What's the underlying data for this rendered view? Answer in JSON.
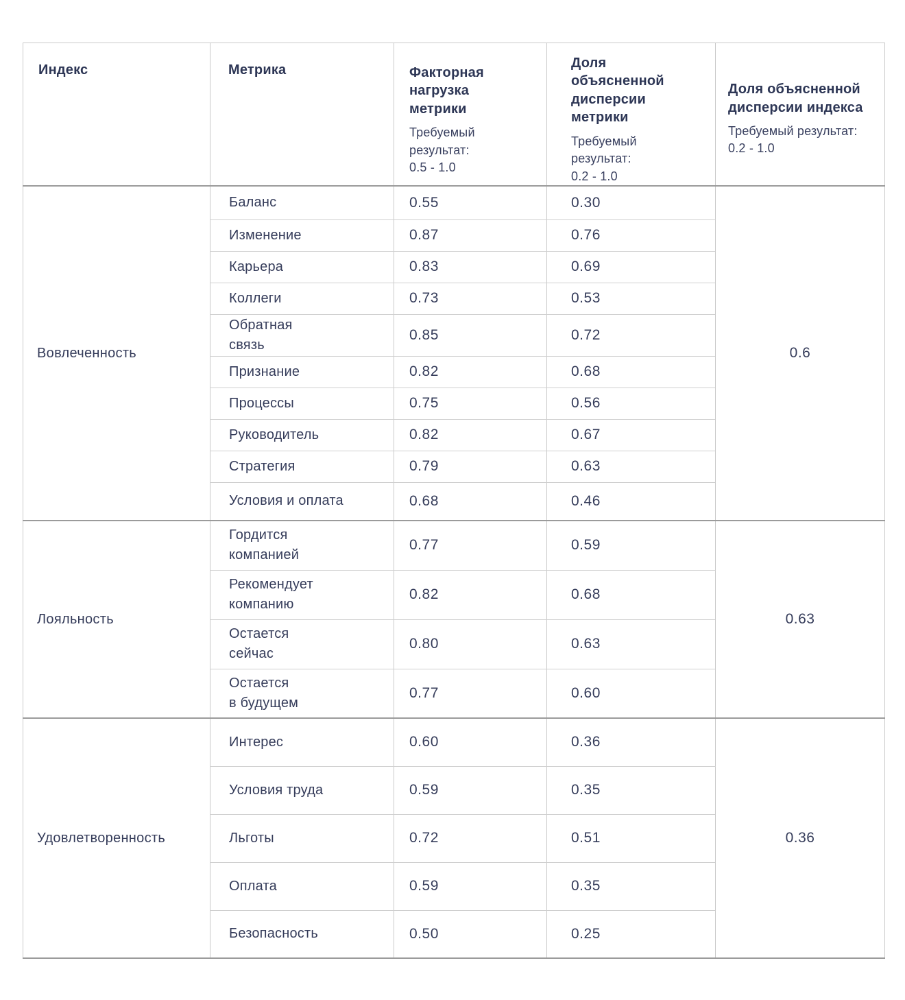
{
  "colors": {
    "header_text": "#2d3655",
    "body_text": "#353c5a",
    "border_light": "#c9c9c9",
    "border_dark": "#9b9b9b",
    "background": "#ffffff"
  },
  "table": {
    "columns": [
      {
        "label": "Индекс",
        "sublabel": ""
      },
      {
        "label": "Метрика",
        "sublabel": ""
      },
      {
        "label": "Факторная\nнагрузка\nметрики",
        "sublabel": "Требуемый\nрезультат:\n0.5 - 1.0"
      },
      {
        "label": "Доля\nобъясненной\nдисперсии\nметрики",
        "sublabel": "Требуемый\nрезультат:\n0.2 - 1.0"
      },
      {
        "label": "Доля объясненной\nдисперсии индекса",
        "sublabel": "Требуемый результат:\n0.2 - 1.0"
      }
    ],
    "groups": [
      {
        "index": "Вовлеченность",
        "index_variance": "0.6",
        "rows": [
          {
            "metric": "Баланс",
            "loading": "0.55",
            "variance": "0.30"
          },
          {
            "metric": "Изменение",
            "loading": "0.87",
            "variance": "0.76"
          },
          {
            "metric": "Карьера",
            "loading": "0.83",
            "variance": "0.69"
          },
          {
            "metric": "Коллеги",
            "loading": "0.73",
            "variance": "0.53"
          },
          {
            "metric": "Обратная\nсвязь",
            "loading": "0.85",
            "variance": "0.72"
          },
          {
            "metric": "Признание",
            "loading": "0.82",
            "variance": "0.68"
          },
          {
            "metric": "Процессы",
            "loading": "0.75",
            "variance": "0.56"
          },
          {
            "metric": "Руководитель",
            "loading": "0.82",
            "variance": "0.67"
          },
          {
            "metric": "Стратегия",
            "loading": "0.79",
            "variance": "0.63"
          },
          {
            "metric": "Условия и оплата",
            "loading": "0.68",
            "variance": "0.46"
          }
        ]
      },
      {
        "index": "Лояльность",
        "index_variance": "0.63",
        "rows": [
          {
            "metric": "Гордится\nкомпанией",
            "loading": "0.77",
            "variance": "0.59"
          },
          {
            "metric": "Рекомендует\nкомпанию",
            "loading": "0.82",
            "variance": "0.68"
          },
          {
            "metric": "Остается\nсейчас",
            "loading": "0.80",
            "variance": "0.63"
          },
          {
            "metric": "Остается\nв будущем",
            "loading": "0.77",
            "variance": "0.60"
          }
        ]
      },
      {
        "index": "Удовлетворенность",
        "index_variance": "0.36",
        "rows": [
          {
            "metric": "Интерес",
            "loading": "0.60",
            "variance": "0.36"
          },
          {
            "metric": "Условия труда",
            "loading": "0.59",
            "variance": "0.35"
          },
          {
            "metric": "Льготы",
            "loading": "0.72",
            "variance": "0.51"
          },
          {
            "metric": "Оплата",
            "loading": "0.59",
            "variance": "0.35"
          },
          {
            "metric": "Безопасность",
            "loading": "0.50",
            "variance": "0.25"
          }
        ]
      }
    ]
  }
}
